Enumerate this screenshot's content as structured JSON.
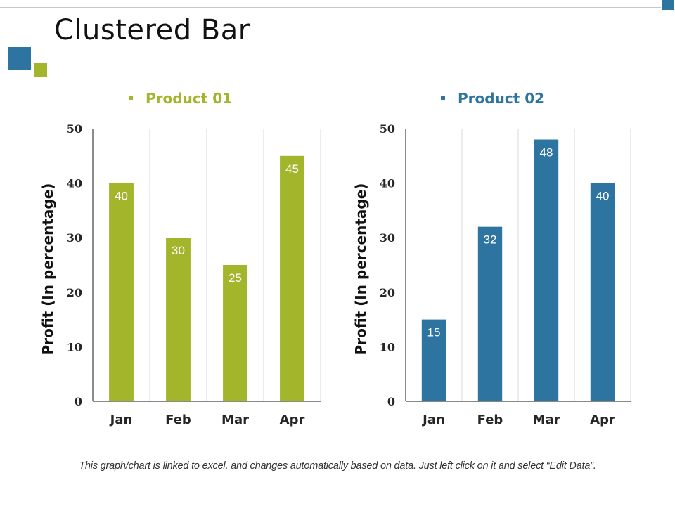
{
  "slide": {
    "title": "Clustered Bar",
    "footnote": "This graph/chart is linked to excel, and changes automatically based on data. Just left click on it and select “Edit Data”.",
    "accent_colors": {
      "blue": "#2e74a0",
      "green": "#a3b52a"
    }
  },
  "chart_data": [
    {
      "type": "bar",
      "title": "",
      "legend": [
        "Product 01"
      ],
      "legend_placement": "top",
      "categories": [
        "Jan",
        "Feb",
        "Mar",
        "Apr"
      ],
      "series": [
        {
          "name": "Product 01",
          "values": [
            40,
            30,
            25,
            45
          ],
          "color": "#a3b52a"
        }
      ],
      "xlabel": "",
      "ylabel": "Profit  (In percentage)",
      "ylim": [
        0,
        50
      ],
      "yticks": [
        0,
        10,
        20,
        30,
        40,
        50
      ],
      "grid": "vertical category separators",
      "data_labels": [
        "40",
        "30",
        "25",
        "45"
      ]
    },
    {
      "type": "bar",
      "title": "",
      "legend": [
        "Product 02"
      ],
      "legend_placement": "top",
      "categories": [
        "Jan",
        "Feb",
        "Mar",
        "Apr"
      ],
      "series": [
        {
          "name": "Product 02",
          "values": [
            15,
            32,
            48,
            40
          ],
          "color": "#2e74a0"
        }
      ],
      "xlabel": "",
      "ylabel": "Profit  (In percentage)",
      "ylim": [
        0,
        50
      ],
      "yticks": [
        0,
        10,
        20,
        30,
        40,
        50
      ],
      "grid": "vertical category separators",
      "data_labels": [
        "15",
        "32",
        "48",
        "40"
      ]
    }
  ]
}
